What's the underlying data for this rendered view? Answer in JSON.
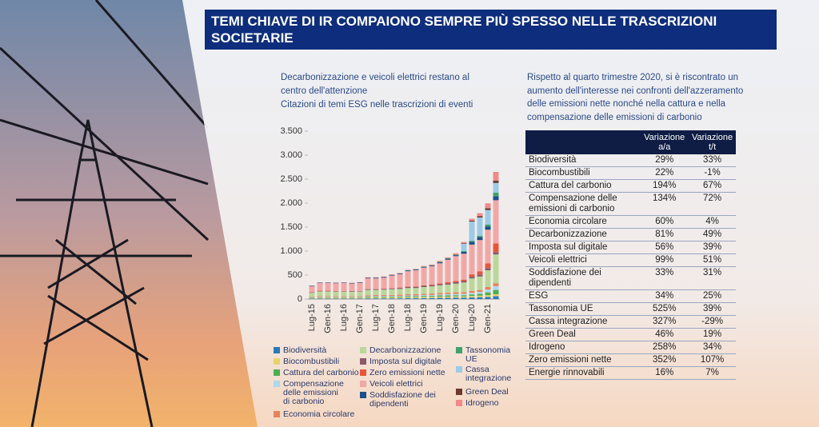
{
  "header": {
    "title": "TEMI CHIAVE DI IR COMPAIONO SEMPRE PIÙ SPESSO NELLE TRASCRIZIONI SOCIETARIE"
  },
  "chart_data": {
    "type": "bar",
    "stacked": true,
    "title": "Decarbonizzazione e veicoli elettrici restano al centro dell'attenzione",
    "subtitle": "Citazioni di temi ESG nelle trascrizioni di eventi",
    "categories": [
      "Lug-15",
      null,
      "Gen-16",
      null,
      "Lug-16",
      null,
      "Gen-17",
      null,
      "Lug-17",
      null,
      "Gen-18",
      null,
      "Lug-18",
      null,
      "Gen-19",
      null,
      "Lug-19",
      null,
      "Gen-20",
      null,
      "Lug-20",
      null,
      "Gen-21",
      null
    ],
    "ylim": [
      0,
      3500
    ],
    "yticks": [
      0,
      500,
      {
        "value": 1000,
        "label": "1.000"
      },
      {
        "value": 1500,
        "label": "1.500"
      },
      {
        "value": 2000,
        "label": "2.000"
      },
      {
        "value": 2500,
        "label": "2.500"
      },
      {
        "value": 3000,
        "label": "3.000"
      },
      {
        "value": 3500,
        "label": "3.500"
      }
    ],
    "series": [
      {
        "name": "Biodiversità",
        "color": "#2a7ab8",
        "values": [
          10,
          10,
          10,
          10,
          10,
          10,
          10,
          15,
          15,
          15,
          15,
          15,
          20,
          20,
          20,
          20,
          25,
          25,
          30,
          30,
          35,
          40,
          45,
          60
        ]
      },
      {
        "name": "Biocombustibili",
        "color": "#e8d36a",
        "values": [
          10,
          15,
          15,
          15,
          15,
          15,
          15,
          20,
          20,
          20,
          20,
          20,
          20,
          20,
          25,
          25,
          25,
          25,
          25,
          25,
          30,
          30,
          35,
          40
        ]
      },
      {
        "name": "Cattura del carbonio",
        "color": "#4caf50",
        "values": [
          10,
          10,
          10,
          10,
          10,
          10,
          10,
          15,
          15,
          15,
          15,
          15,
          20,
          20,
          20,
          20,
          25,
          25,
          25,
          25,
          30,
          40,
          60,
          90
        ]
      },
      {
        "name": "Compensazione delle emissioni di carbonio",
        "color": "#aed8ee",
        "values": [
          10,
          10,
          10,
          10,
          10,
          10,
          10,
          10,
          15,
          15,
          15,
          15,
          15,
          15,
          20,
          20,
          20,
          25,
          25,
          30,
          35,
          40,
          60,
          80
        ]
      },
      {
        "name": "Economia circolare",
        "color": "#e8825a",
        "values": [
          10,
          15,
          15,
          15,
          15,
          15,
          15,
          20,
          20,
          20,
          20,
          25,
          25,
          25,
          25,
          30,
          30,
          30,
          35,
          35,
          40,
          40,
          50,
          60
        ]
      },
      {
        "name": "Decarbonizzazione",
        "color": "#b9d89a",
        "values": [
          80,
          100,
          100,
          95,
          95,
          90,
          95,
          110,
          105,
          110,
          120,
          120,
          130,
          130,
          140,
          150,
          160,
          170,
          180,
          200,
          260,
          280,
          350,
          600
        ]
      },
      {
        "name": "Imposta sul digitale",
        "color": "#8a5a6a",
        "values": [
          10,
          10,
          10,
          10,
          10,
          10,
          10,
          15,
          15,
          15,
          15,
          20,
          20,
          20,
          25,
          25,
          25,
          30,
          30,
          30,
          35,
          40,
          45,
          50
        ]
      },
      {
        "name": "Zero emissioni nette",
        "color": "#e8553a",
        "values": [
          5,
          5,
          5,
          5,
          5,
          5,
          5,
          5,
          5,
          5,
          10,
          10,
          10,
          10,
          10,
          15,
          15,
          20,
          25,
          30,
          50,
          70,
          100,
          180
        ]
      },
      {
        "name": "Veicoli elettrici",
        "color": "#f2a7a7",
        "values": [
          120,
          160,
          160,
          160,
          165,
          160,
          170,
          220,
          220,
          230,
          260,
          280,
          320,
          340,
          370,
          380,
          420,
          470,
          520,
          540,
          620,
          650,
          700,
          900
        ]
      },
      {
        "name": "Soddisfazione dei dipendenti",
        "color": "#1b4f8a",
        "values": [
          10,
          10,
          10,
          10,
          10,
          10,
          10,
          15,
          15,
          15,
          15,
          15,
          15,
          15,
          15,
          15,
          20,
          20,
          20,
          40,
          60,
          60,
          70,
          80
        ]
      },
      {
        "name": "Tassonomia UE",
        "color": "#3fa36b",
        "values": [
          0,
          0,
          0,
          0,
          0,
          0,
          0,
          0,
          0,
          0,
          0,
          0,
          5,
          5,
          5,
          5,
          10,
          10,
          10,
          15,
          20,
          30,
          40,
          80
        ]
      },
      {
        "name": "Cassa integrazione",
        "color": "#9ccbe6",
        "values": [
          0,
          0,
          0,
          0,
          0,
          0,
          0,
          0,
          0,
          0,
          0,
          0,
          0,
          0,
          0,
          0,
          0,
          0,
          0,
          150,
          400,
          380,
          300,
          200
        ]
      },
      {
        "name": "Green Deal",
        "color": "#6b3b2e",
        "values": [
          0,
          0,
          0,
          0,
          0,
          0,
          0,
          0,
          0,
          0,
          0,
          0,
          0,
          0,
          0,
          0,
          0,
          0,
          5,
          10,
          20,
          30,
          40,
          50
        ]
      },
      {
        "name": "Idrogeno",
        "color": "#f08a8a",
        "values": [
          5,
          5,
          5,
          5,
          5,
          5,
          5,
          10,
          10,
          10,
          10,
          10,
          10,
          10,
          15,
          15,
          20,
          20,
          25,
          30,
          40,
          60,
          100,
          180
        ]
      }
    ]
  },
  "table": {
    "intro": "Rispetto al quarto trimestre 2020, si è riscontrato un aumento dell'interesse nei confronti dell'azzeramento delle emissioni nette nonché nella cattura e nella compensazione delle emissioni di carbonio",
    "columns": [
      "Variazione a/a",
      "Variazione t/t"
    ],
    "rows": [
      [
        "Biodiversità",
        "29%",
        "33%"
      ],
      [
        "Biocombustibili",
        "22%",
        "-1%"
      ],
      [
        "Cattura del carbonio",
        "194%",
        "67%"
      ],
      [
        "Compensazione delle emissioni di carbonio",
        "134%",
        "72%"
      ],
      [
        "Economia circolare",
        "60%",
        "4%"
      ],
      [
        "Decarbonizzazione",
        "81%",
        "49%"
      ],
      [
        "Imposta sul digitale",
        "56%",
        "39%"
      ],
      [
        "Veicoli elettrici",
        "99%",
        "51%"
      ],
      [
        "Soddisfazione dei dipendenti",
        "33%",
        "31%"
      ],
      [
        "ESG",
        "34%",
        "25%"
      ],
      [
        "Tassonomia UE",
        "525%",
        "39%"
      ],
      [
        "Cassa integrazione",
        "327%",
        "-29%"
      ],
      [
        "Green Deal",
        "46%",
        "19%"
      ],
      [
        "Idrogeno",
        "258%",
        "34%"
      ],
      [
        "Zero emissioni nette",
        "352%",
        "107%"
      ],
      [
        "Energie rinnovabili",
        "16%",
        "7%"
      ]
    ]
  }
}
